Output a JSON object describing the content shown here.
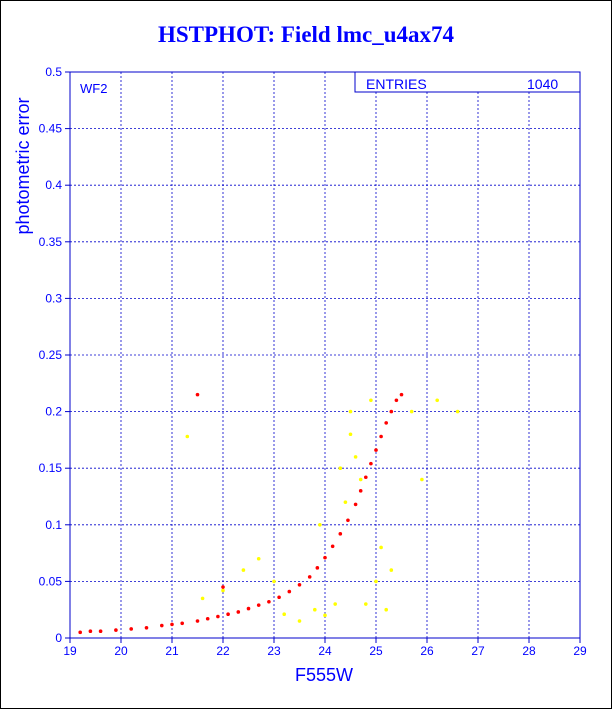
{
  "colors": {
    "axis": "#0000cc",
    "text": "#0000ff",
    "primary": "#ff0000",
    "secondary": "#ffff00",
    "grid": "#0000cc"
  },
  "chart_data": {
    "type": "scatter",
    "title": "HSTPHOT: Field lmc_u4ax74",
    "panel_label": "WF2",
    "stats_box": {
      "label": "ENTRIES",
      "value": "1040"
    },
    "xlabel": "F555W",
    "ylabel": "photometric error",
    "xlim": [
      19,
      29
    ],
    "ylim": [
      0,
      0.5
    ],
    "xticks": [
      "19",
      "20",
      "21",
      "22",
      "23",
      "24",
      "25",
      "26",
      "27",
      "28",
      "29"
    ],
    "yticks": [
      "0",
      "0.05",
      "0.1",
      "0.15",
      "0.2",
      "0.25",
      "0.3",
      "0.35",
      "0.4",
      "0.45",
      "0.5"
    ],
    "grid": true,
    "series": [
      {
        "color": "#ff0000",
        "values": [
          [
            19.2,
            0.005
          ],
          [
            19.4,
            0.006
          ],
          [
            19.6,
            0.006
          ],
          [
            19.9,
            0.007
          ],
          [
            20.2,
            0.008
          ],
          [
            20.5,
            0.009
          ],
          [
            20.8,
            0.011
          ],
          [
            21.0,
            0.012
          ],
          [
            21.2,
            0.013
          ],
          [
            21.5,
            0.015
          ],
          [
            21.7,
            0.017
          ],
          [
            21.9,
            0.019
          ],
          [
            22.1,
            0.021
          ],
          [
            22.3,
            0.023
          ],
          [
            22.5,
            0.026
          ],
          [
            22.7,
            0.029
          ],
          [
            22.9,
            0.032
          ],
          [
            23.1,
            0.036
          ],
          [
            23.3,
            0.041
          ],
          [
            23.5,
            0.047
          ],
          [
            23.7,
            0.054
          ],
          [
            23.85,
            0.062
          ],
          [
            24.0,
            0.071
          ],
          [
            24.15,
            0.081
          ],
          [
            24.3,
            0.092
          ],
          [
            24.45,
            0.104
          ],
          [
            24.6,
            0.118
          ],
          [
            24.7,
            0.13
          ],
          [
            24.8,
            0.142
          ],
          [
            24.9,
            0.154
          ],
          [
            25.0,
            0.166
          ],
          [
            25.1,
            0.178
          ],
          [
            25.2,
            0.19
          ],
          [
            25.3,
            0.2
          ],
          [
            25.4,
            0.21
          ],
          [
            25.5,
            0.215
          ],
          [
            21.5,
            0.215
          ],
          [
            22.0,
            0.045
          ]
        ]
      },
      {
        "color": "#ffff00",
        "values": [
          [
            21.3,
            0.178
          ],
          [
            21.6,
            0.035
          ],
          [
            22.0,
            0.042
          ],
          [
            22.4,
            0.06
          ],
          [
            22.7,
            0.07
          ],
          [
            23.0,
            0.05
          ],
          [
            23.2,
            0.021
          ],
          [
            23.5,
            0.015
          ],
          [
            23.8,
            0.025
          ],
          [
            24.0,
            0.02
          ],
          [
            24.2,
            0.03
          ],
          [
            24.4,
            0.12
          ],
          [
            24.5,
            0.2
          ],
          [
            24.5,
            0.18
          ],
          [
            24.6,
            0.16
          ],
          [
            24.7,
            0.14
          ],
          [
            24.8,
            0.03
          ],
          [
            25.0,
            0.05
          ],
          [
            25.2,
            0.025
          ],
          [
            25.3,
            0.06
          ],
          [
            25.7,
            0.2
          ],
          [
            25.9,
            0.14
          ],
          [
            26.2,
            0.21
          ],
          [
            26.6,
            0.2
          ],
          [
            24.9,
            0.21
          ],
          [
            25.1,
            0.08
          ],
          [
            23.9,
            0.1
          ],
          [
            24.3,
            0.15
          ]
        ]
      }
    ]
  }
}
